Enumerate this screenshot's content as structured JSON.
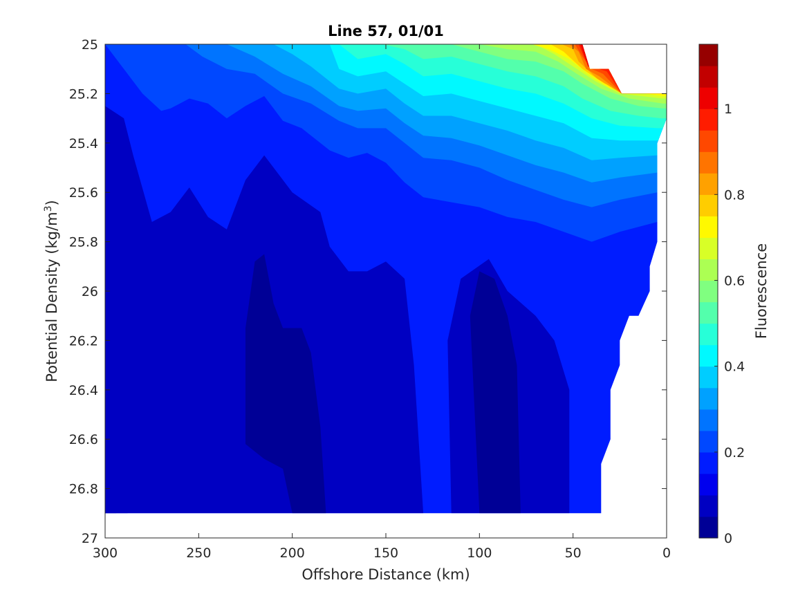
{
  "chart_data": {
    "type": "contourf",
    "title": "Line 57, 01/01",
    "xlabel": "Offshore Distance (km)",
    "ylabel_prefix": "Potential Density (kg/m",
    "ylabel_sup": "3",
    "ylabel_suffix": ")",
    "colorbar_label": "Fluorescence",
    "xlim": [
      300,
      0
    ],
    "x_reversed": true,
    "ylim": [
      25,
      27
    ],
    "y_reversed": true,
    "xticks": [
      300,
      250,
      200,
      150,
      100,
      50,
      0
    ],
    "xtick_labels": [
      "300",
      "250",
      "200",
      "150",
      "100",
      "50",
      "0"
    ],
    "yticks": [
      25,
      25.2,
      25.4,
      25.6,
      25.8,
      26,
      26.2,
      26.4,
      26.6,
      26.8,
      27
    ],
    "ytick_labels": [
      "25",
      "25.2",
      "25.4",
      "25.6",
      "25.8",
      "26",
      "26.2",
      "26.4",
      "26.6",
      "26.8",
      "27"
    ],
    "colorbar_limits": [
      0,
      1.15
    ],
    "colorbar_ticks": [
      0,
      0.2,
      0.4,
      0.6,
      0.8,
      1
    ],
    "colorbar_tick_labels": [
      "0",
      "0.2",
      "0.4",
      "0.6",
      "0.8",
      "1"
    ],
    "level_step": 0.05,
    "colormap": "jet",
    "grid": false,
    "data_extent_bottom": 26.9,
    "data_boundary": [
      [
        300,
        25
      ],
      [
        45,
        25
      ],
      [
        41,
        25.1
      ],
      [
        31,
        25.1
      ],
      [
        24,
        25.2
      ],
      [
        0,
        25.2
      ],
      [
        0,
        25.3
      ],
      [
        5,
        25.4
      ],
      [
        5,
        25.8
      ],
      [
        9,
        25.9
      ],
      [
        9,
        26
      ],
      [
        15,
        26.1
      ],
      [
        20,
        26.1
      ],
      [
        25,
        26.2
      ],
      [
        25,
        26.3
      ],
      [
        30,
        26.4
      ],
      [
        30,
        26.6
      ],
      [
        35,
        26.7
      ],
      [
        35,
        26.9
      ],
      [
        300,
        26.9
      ]
    ],
    "front_lines": [
      {
        "level": 0.15,
        "points": [
          [
            300,
            25
          ],
          [
            290,
            25.1
          ],
          [
            280,
            25.2
          ],
          [
            270,
            25.27
          ],
          [
            265,
            25.26
          ],
          [
            255,
            25.22
          ],
          [
            245,
            25.24
          ],
          [
            235,
            25.3
          ],
          [
            225,
            25.25
          ],
          [
            215,
            25.21
          ],
          [
            205,
            25.31
          ],
          [
            195,
            25.34
          ],
          [
            180,
            25.43
          ],
          [
            170,
            25.46
          ],
          [
            160,
            25.44
          ],
          [
            150,
            25.48
          ],
          [
            140,
            25.56
          ],
          [
            130,
            25.62
          ],
          [
            115,
            25.64
          ],
          [
            100,
            25.66
          ],
          [
            85,
            25.7
          ],
          [
            70,
            25.72
          ],
          [
            55,
            25.76
          ],
          [
            40,
            25.8
          ],
          [
            25,
            25.76
          ],
          [
            5,
            25.72
          ]
        ]
      },
      {
        "level": 0.2,
        "points": [
          [
            257,
            25
          ],
          [
            248,
            25.05
          ],
          [
            235,
            25.1
          ],
          [
            220,
            25.12
          ],
          [
            205,
            25.2
          ],
          [
            190,
            25.24
          ],
          [
            175,
            25.31
          ],
          [
            165,
            25.34
          ],
          [
            150,
            25.34
          ],
          [
            140,
            25.4
          ],
          [
            130,
            25.46
          ],
          [
            115,
            25.47
          ],
          [
            100,
            25.5
          ],
          [
            85,
            25.55
          ],
          [
            70,
            25.59
          ],
          [
            55,
            25.63
          ],
          [
            40,
            25.66
          ],
          [
            25,
            25.63
          ],
          [
            5,
            25.6
          ]
        ]
      },
      {
        "level": 0.25,
        "points": [
          [
            235,
            25
          ],
          [
            220,
            25.05
          ],
          [
            205,
            25.12
          ],
          [
            190,
            25.17
          ],
          [
            175,
            25.25
          ],
          [
            165,
            25.27
          ],
          [
            150,
            25.26
          ],
          [
            140,
            25.32
          ],
          [
            130,
            25.37
          ],
          [
            115,
            25.38
          ],
          [
            100,
            25.41
          ],
          [
            85,
            25.45
          ],
          [
            70,
            25.49
          ],
          [
            55,
            25.52
          ],
          [
            40,
            25.56
          ],
          [
            25,
            25.54
          ],
          [
            5,
            25.52
          ]
        ]
      },
      {
        "level": 0.3,
        "points": [
          [
            210,
            25
          ],
          [
            200,
            25.04
          ],
          [
            190,
            25.09
          ],
          [
            175,
            25.18
          ],
          [
            165,
            25.2
          ],
          [
            150,
            25.18
          ],
          [
            140,
            25.24
          ],
          [
            130,
            25.29
          ],
          [
            115,
            25.29
          ],
          [
            100,
            25.32
          ],
          [
            85,
            25.35
          ],
          [
            70,
            25.39
          ],
          [
            55,
            25.42
          ],
          [
            40,
            25.47
          ],
          [
            25,
            25.46
          ],
          [
            5,
            25.45
          ]
        ]
      },
      {
        "level": 0.35,
        "points": [
          [
            180,
            25
          ],
          [
            175,
            25.1
          ],
          [
            165,
            25.13
          ],
          [
            150,
            25.11
          ],
          [
            140,
            25.16
          ],
          [
            130,
            25.21
          ],
          [
            115,
            25.2
          ],
          [
            100,
            25.23
          ],
          [
            85,
            25.26
          ],
          [
            70,
            25.29
          ],
          [
            55,
            25.32
          ],
          [
            40,
            25.38
          ],
          [
            25,
            25.39
          ],
          [
            5,
            25.39
          ]
        ]
      },
      {
        "level": 0.4,
        "points": [
          [
            175,
            25
          ],
          [
            165,
            25.06
          ],
          [
            150,
            25.04
          ],
          [
            140,
            25.08
          ],
          [
            130,
            25.13
          ],
          [
            115,
            25.12
          ],
          [
            100,
            25.15
          ],
          [
            85,
            25.18
          ],
          [
            70,
            25.2
          ],
          [
            55,
            25.24
          ],
          [
            40,
            25.3
          ],
          [
            25,
            25.33
          ],
          [
            5,
            25.34
          ]
        ]
      },
      {
        "level": 0.45,
        "points": [
          [
            152,
            25
          ],
          [
            140,
            25.02
          ],
          [
            130,
            25.06
          ],
          [
            115,
            25.05
          ],
          [
            100,
            25.08
          ],
          [
            85,
            25.11
          ],
          [
            70,
            25.13
          ],
          [
            55,
            25.17
          ],
          [
            45,
            25.22
          ],
          [
            30,
            25.27
          ],
          [
            15,
            25.29
          ],
          [
            3,
            25.3
          ]
        ]
      },
      {
        "level": 0.5,
        "points": [
          [
            130,
            25
          ],
          [
            115,
            25.0
          ],
          [
            100,
            25.03
          ],
          [
            85,
            25.06
          ],
          [
            70,
            25.07
          ],
          [
            55,
            25.11
          ],
          [
            45,
            25.16
          ],
          [
            30,
            25.22
          ],
          [
            15,
            25.25
          ],
          [
            2,
            25.26
          ]
        ]
      },
      {
        "level": 0.55,
        "points": [
          [
            110,
            25
          ],
          [
            100,
            25.0
          ],
          [
            85,
            25.02
          ],
          [
            70,
            25.03
          ],
          [
            58,
            25.07
          ],
          [
            48,
            25.12
          ],
          [
            35,
            25.18
          ],
          [
            20,
            25.22
          ],
          [
            2,
            25.24
          ]
        ]
      },
      {
        "level": 0.6,
        "points": [
          [
            90,
            25
          ],
          [
            80,
            25.0
          ],
          [
            70,
            25.0
          ],
          [
            60,
            25.04
          ],
          [
            50,
            25.09
          ],
          [
            38,
            25.15
          ],
          [
            25,
            25.2
          ],
          [
            2,
            25.22
          ]
        ]
      },
      {
        "level": 0.65,
        "points": [
          [
            72,
            25
          ],
          [
            63,
            25.02
          ],
          [
            52,
            25.06
          ],
          [
            42,
            25.12
          ],
          [
            30,
            25.18
          ],
          [
            2,
            25.21
          ]
        ]
      },
      {
        "level": 0.7,
        "points": [
          [
            62,
            25
          ],
          [
            55,
            25.03
          ],
          [
            45,
            25.1
          ],
          [
            33,
            25.16
          ],
          [
            2,
            25.2
          ]
        ]
      },
      {
        "level": 0.75,
        "points": [
          [
            56,
            25
          ],
          [
            50,
            25.02
          ],
          [
            47,
            25.07
          ],
          [
            37,
            25.14
          ],
          [
            24,
            25.2
          ],
          [
            2,
            25.2
          ]
        ]
      },
      {
        "level": 0.8,
        "points": [
          [
            52,
            25
          ],
          [
            47,
            25.03
          ],
          [
            43,
            25.1
          ],
          [
            36,
            25.13
          ],
          [
            24,
            25.2
          ]
        ]
      },
      {
        "level": 0.85,
        "points": [
          [
            49,
            25
          ],
          [
            45,
            25.05
          ],
          [
            40,
            25.1
          ],
          [
            34,
            25.12
          ],
          [
            24,
            25.2
          ]
        ]
      },
      {
        "level": 0.9,
        "points": [
          [
            47,
            25
          ],
          [
            43,
            25.07
          ],
          [
            36,
            25.1
          ],
          [
            32,
            25.11
          ],
          [
            24,
            25.2
          ]
        ]
      },
      {
        "level": 0.95,
        "points": [
          [
            46,
            25
          ],
          [
            42,
            25.09
          ],
          [
            35,
            25.1
          ]
        ]
      }
    ],
    "low_patches": [
      {
        "level": 0.1,
        "points": [
          [
            300,
            25.85
          ],
          [
            295,
            25.88
          ],
          [
            290,
            26.2
          ],
          [
            288,
            26.9
          ],
          [
            300,
            26.9
          ]
        ]
      },
      {
        "level": 0.05,
        "points": [
          [
            300,
            25.92
          ],
          [
            296,
            26.3
          ],
          [
            294,
            26.9
          ],
          [
            300,
            26.9
          ]
        ]
      },
      {
        "level": 0.1,
        "points": [
          [
            300,
            25.25
          ],
          [
            290,
            25.3
          ],
          [
            285,
            25.45
          ],
          [
            275,
            25.72
          ],
          [
            265,
            25.68
          ],
          [
            255,
            25.58
          ],
          [
            245,
            25.7
          ],
          [
            235,
            25.75
          ],
          [
            225,
            25.55
          ],
          [
            215,
            25.45
          ],
          [
            200,
            25.6
          ],
          [
            185,
            25.68
          ],
          [
            180,
            25.82
          ],
          [
            170,
            25.92
          ],
          [
            160,
            25.92
          ],
          [
            150,
            25.88
          ],
          [
            140,
            25.95
          ],
          [
            135,
            26.3
          ],
          [
            130,
            26.9
          ],
          [
            300,
            26.9
          ]
        ]
      },
      {
        "level": 0.1,
        "points": [
          [
            115,
            26.9
          ],
          [
            117,
            26.2
          ],
          [
            110,
            25.95
          ],
          [
            95,
            25.87
          ],
          [
            85,
            26.0
          ],
          [
            70,
            26.1
          ],
          [
            60,
            26.2
          ],
          [
            52,
            26.4
          ],
          [
            52,
            26.9
          ]
        ]
      },
      {
        "level": 0.05,
        "points": [
          [
            225,
            26.62
          ],
          [
            225,
            26.15
          ],
          [
            220,
            25.88
          ],
          [
            215,
            25.85
          ],
          [
            210,
            26.05
          ],
          [
            205,
            26.15
          ],
          [
            195,
            26.15
          ],
          [
            190,
            26.25
          ],
          [
            185,
            26.55
          ],
          [
            182,
            26.9
          ],
          [
            200,
            26.9
          ],
          [
            205,
            26.72
          ],
          [
            215,
            26.68
          ]
        ]
      },
      {
        "level": 0.05,
        "points": [
          [
            100,
            26.9
          ],
          [
            105,
            26.1
          ],
          [
            100,
            25.92
          ],
          [
            92,
            25.95
          ],
          [
            85,
            26.1
          ],
          [
            80,
            26.3
          ],
          [
            78,
            26.9
          ],
          [
            92,
            26.9
          ],
          [
            94,
            26.8
          ],
          [
            89,
            26.8
          ],
          [
            88,
            26.9
          ]
        ]
      }
    ]
  }
}
